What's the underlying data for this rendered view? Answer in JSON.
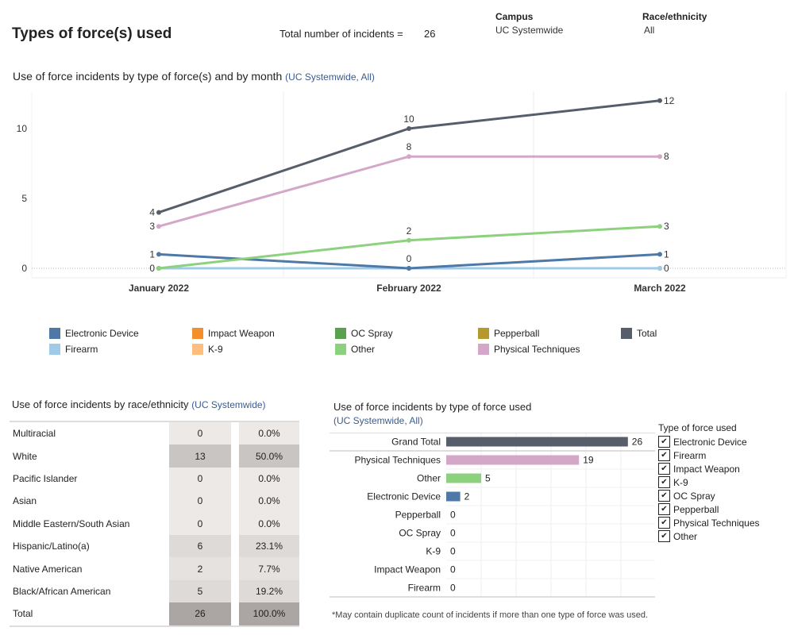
{
  "header": {
    "title": "Types of force(s) used",
    "total_label": "Total number of incidents =",
    "total_value": "26",
    "filters": [
      {
        "label": "Campus",
        "value": "UC Systemwide"
      },
      {
        "label": "Race/ethnicity",
        "value": "All"
      }
    ]
  },
  "line_chart": {
    "title": "Use of force incidents by type of force(s) and by month",
    "subtitle": "(UC Systemwide, All)"
  },
  "race_table": {
    "title": "Use of force incidents by race/ethnicity",
    "subtitle": "(UC Systemwide)",
    "rows": [
      {
        "name": "Multiracial",
        "count": "0",
        "pct": "0.0%"
      },
      {
        "name": "White",
        "count": "13",
        "pct": "50.0%"
      },
      {
        "name": "Pacific Islander",
        "count": "0",
        "pct": "0.0%"
      },
      {
        "name": "Asian",
        "count": "0",
        "pct": "0.0%"
      },
      {
        "name": "Middle Eastern/South Asian",
        "count": "0",
        "pct": "0.0%"
      },
      {
        "name": "Hispanic/Latino(a)",
        "count": "6",
        "pct": "23.1%"
      },
      {
        "name": "Native American",
        "count": "2",
        "pct": "7.7%"
      },
      {
        "name": "Black/African American",
        "count": "5",
        "pct": "19.2%"
      },
      {
        "name": "Total",
        "count": "26",
        "pct": "100.0%"
      }
    ]
  },
  "bar_chart_meta": {
    "title": "Use of force incidents by type of force used",
    "subtitle": "(UC Systemwide, All)",
    "footnote": "*May contain duplicate count of incidents if more than one type of force was used.",
    "filter_title": "Type of force used",
    "filter_items": [
      "Electronic Device",
      "Firearm",
      "Impact Weapon",
      "K-9",
      "OC Spray",
      "Pepperball",
      "Physical Techniques",
      "Other"
    ],
    "check_glyph": "✔"
  },
  "chart_data": [
    {
      "type": "line",
      "title": "Use of force incidents by type of force(s) and by month",
      "categories": [
        "January 2022",
        "February 2022",
        "March 2022"
      ],
      "yticks": [
        0,
        5,
        10
      ],
      "ylim": [
        0,
        13
      ],
      "grid": true,
      "legend": "bottom",
      "series": [
        {
          "name": "Electronic Device",
          "color": "#4e79a7",
          "values": [
            1,
            0,
            1
          ]
        },
        {
          "name": "Impact Weapon",
          "color": "#f28e2b",
          "values": [
            0,
            0,
            0
          ]
        },
        {
          "name": "OC Spray",
          "color": "#59a14f",
          "values": [
            0,
            0,
            0
          ]
        },
        {
          "name": "Pepperball",
          "color": "#b6992d",
          "values": [
            0,
            0,
            0
          ]
        },
        {
          "name": "Total",
          "color": "#575e6b",
          "values": [
            4,
            10,
            12
          ]
        },
        {
          "name": "Firearm",
          "color": "#a0cbe8",
          "values": [
            0,
            0,
            0
          ]
        },
        {
          "name": "K-9",
          "color": "#ffbe7d",
          "values": [
            0,
            0,
            0
          ]
        },
        {
          "name": "Other",
          "color": "#8cd17d",
          "values": [
            0,
            2,
            3
          ]
        },
        {
          "name": "Physical Techniques",
          "color": "#d4a6c8",
          "values": [
            3,
            8,
            8
          ]
        }
      ]
    },
    {
      "type": "bar",
      "title": "Use of force incidents by type of force used",
      "orientation": "horizontal",
      "xlim": [
        0,
        30
      ],
      "grid": true,
      "categories": [
        "Grand Total",
        "Physical Techniques",
        "Other",
        "Electronic Device",
        "Pepperball",
        "OC Spray",
        "K-9",
        "Impact Weapon",
        "Firearm"
      ],
      "values": [
        26,
        19,
        5,
        2,
        0,
        0,
        0,
        0,
        0
      ],
      "colors": [
        "#575e6b",
        "#d4a6c8",
        "#8cd17d",
        "#4e79a7",
        "#b6992d",
        "#59a14f",
        "#ffbe7d",
        "#f28e2b",
        "#a0cbe8"
      ]
    }
  ]
}
